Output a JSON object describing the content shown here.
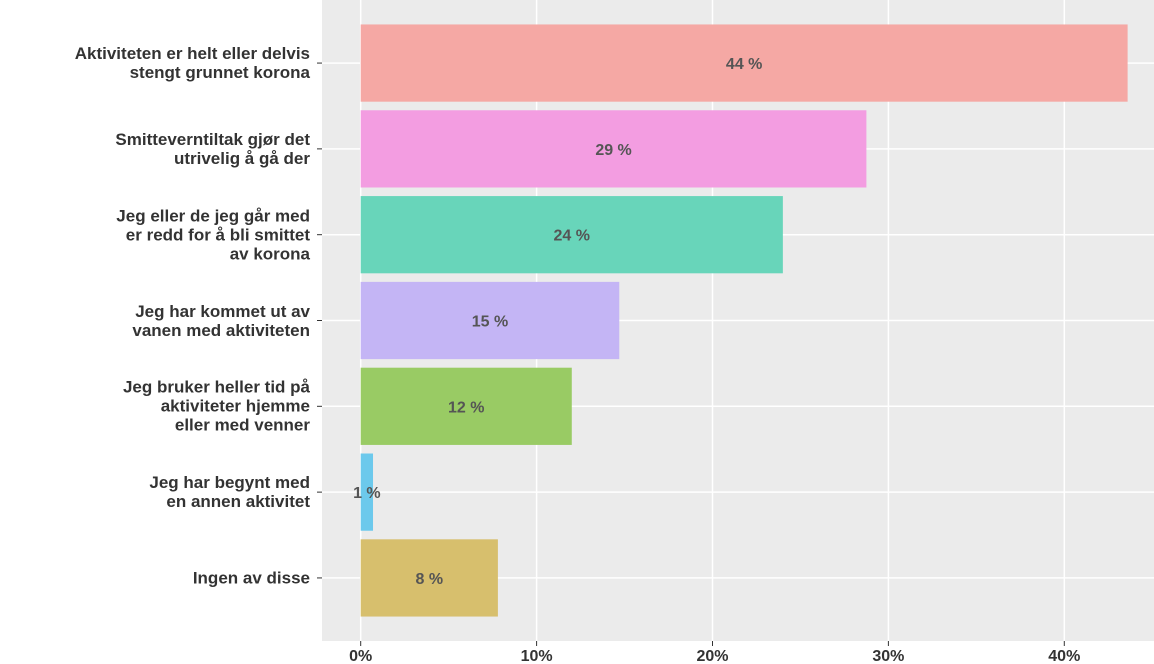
{
  "chart_data": {
    "type": "barh",
    "categories": [
      "Aktiviteten er helt eller delvis\nstengt grunnet korona",
      "Smitteverntiltak gjør det\nutrivelig å gå der",
      "Jeg eller de jeg går med\ner redd for å bli smittet\nav korona",
      "Jeg har kommet ut av\nvanen med aktiviteten",
      "Jeg bruker heller tid på\naktiviteter hjemme\neller med venner",
      "Jeg har begynt med\nen annen aktivitet",
      "Ingen av disse"
    ],
    "values": [
      43.6,
      28.75,
      24.0,
      14.7,
      12.0,
      0.7,
      7.8
    ],
    "value_labels": [
      "44 %",
      "29 %",
      "24 %",
      "15 %",
      "12 %",
      "1 %",
      "8 %"
    ],
    "colors": [
      "#f5a8a4",
      "#f39de1",
      "#68d5ba",
      "#c4b5f5",
      "#99cb64",
      "#6cc9ec",
      "#d7bf6d"
    ],
    "xlim": [
      -2.2,
      45.1
    ],
    "xticks": [
      {
        "value": 0,
        "label": "0%"
      },
      {
        "value": 10,
        "label": "10%"
      },
      {
        "value": 20,
        "label": "20%"
      },
      {
        "value": 30,
        "label": "30%"
      },
      {
        "value": 40,
        "label": "40%"
      }
    ],
    "grid": true
  }
}
